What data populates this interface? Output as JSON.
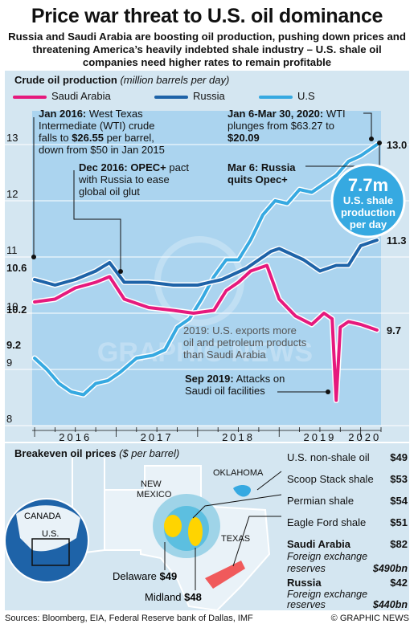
{
  "title": "Price war threat to U.S. oil dominance",
  "subtitle": "Russia and Saudi Arabia are boosting oil production, pushing down prices and threatening America’s heavily indebted shale industry – U.S. shale oil companies need higher rates to remain profitable",
  "colors": {
    "saudi": "#e6197d",
    "russia": "#1e63a8",
    "us": "#36a9e1",
    "panel": "#d4e6f1",
    "area": "#abd4ef"
  },
  "chart_data": {
    "type": "line",
    "title": "Crude oil production",
    "unit_note": "(million barrels per day)",
    "ylim": [
      8,
      13.6
    ],
    "yticks": [
      "8",
      "9",
      "10",
      "11",
      "12",
      "13"
    ],
    "xticks": [
      "2016",
      "2017",
      "2018",
      "2019",
      "2020"
    ],
    "series": [
      {
        "name": "Saudi Arabia",
        "color": "#e6197d",
        "x": [
          2016.0,
          2016.25,
          2016.5,
          2016.75,
          2016.92,
          2017.1,
          2017.4,
          2017.7,
          2017.95,
          2018.2,
          2018.35,
          2018.5,
          2018.65,
          2018.85,
          2019.0,
          2019.2,
          2019.4,
          2019.55,
          2019.65,
          2019.7,
          2019.75,
          2019.85,
          2020.0,
          2020.2
        ],
        "values": [
          10.2,
          10.25,
          10.45,
          10.55,
          10.65,
          10.25,
          10.1,
          10.05,
          10.0,
          10.05,
          10.4,
          10.55,
          10.75,
          10.85,
          10.25,
          9.95,
          9.8,
          10.0,
          9.9,
          8.45,
          9.75,
          9.85,
          9.8,
          9.7
        ]
      },
      {
        "name": "Russia",
        "color": "#1e63a8",
        "x": [
          2016.0,
          2016.25,
          2016.5,
          2016.75,
          2016.92,
          2017.1,
          2017.4,
          2017.7,
          2018.0,
          2018.3,
          2018.6,
          2018.9,
          2019.0,
          2019.3,
          2019.5,
          2019.7,
          2019.85,
          2020.0,
          2020.2
        ],
        "values": [
          10.6,
          10.5,
          10.6,
          10.75,
          10.9,
          10.55,
          10.55,
          10.5,
          10.5,
          10.6,
          10.8,
          11.1,
          11.15,
          10.95,
          10.75,
          10.85,
          10.85,
          11.2,
          11.3
        ]
      },
      {
        "name": "U.S",
        "color": "#36a9e1",
        "x": [
          2016.0,
          2016.15,
          2016.3,
          2016.45,
          2016.6,
          2016.75,
          2016.9,
          2017.05,
          2017.25,
          2017.45,
          2017.6,
          2017.75,
          2017.9,
          2018.05,
          2018.2,
          2018.35,
          2018.5,
          2018.65,
          2018.8,
          2018.95,
          2019.1,
          2019.25,
          2019.4,
          2019.55,
          2019.7,
          2019.85,
          2020.0,
          2020.2
        ],
        "values": [
          9.2,
          9.0,
          8.75,
          8.6,
          8.55,
          8.75,
          8.8,
          8.95,
          9.2,
          9.25,
          9.35,
          9.75,
          9.9,
          10.25,
          10.65,
          10.95,
          10.95,
          11.3,
          11.75,
          12.0,
          11.95,
          12.2,
          12.15,
          12.3,
          12.45,
          12.7,
          12.8,
          13.0
        ]
      }
    ],
    "line_legend": [
      "Saudi Arabia",
      "Russia",
      "U.S"
    ],
    "value_labels": [
      {
        "text": "10.6",
        "series": "Russia"
      },
      {
        "text": "10.2",
        "series": "Saudi Arabia"
      },
      {
        "text": "9.2",
        "series": "U.S"
      },
      {
        "text": "13.0",
        "series": "U.S"
      },
      {
        "text": "11.3",
        "series": "Russia"
      },
      {
        "text": "9.7",
        "series": "Saudi Arabia"
      }
    ],
    "annotations": {
      "jan2016": {
        "bold": "Jan 2016:",
        "line1": " West Texas",
        "line2": "Intermediate (WTI) crude",
        "line3a": "falls to ",
        "line3b": "$26.55",
        "line3c": " per barrel,",
        "line4": "down from $50 in Jan 2015"
      },
      "dec2016": {
        "bold": "Dec 2016: OPEC+",
        "line1": " pact",
        "line2": "with Russia to ease",
        "line3": "global oil glut"
      },
      "jan2020": {
        "bold": "Jan 6-Mar 30, 2020:",
        "line1": " WTI",
        "line2": "plunges from $63.27 to",
        "line3": "$20.09"
      },
      "mar6": {
        "line1": "Mar 6: Russia",
        "line2": "quits Opec+"
      },
      "bubble": {
        "big": "7.7m",
        "line1": "U.S. shale",
        "line2": "production",
        "line3": "per day"
      },
      "us2019a": {
        "line1a": "2019:",
        "line1b": " U.S. exports more",
        "line2": "oil and petroleum products",
        "line3": "than Saudi Arabia"
      },
      "sep2019": {
        "bold": "Sep 2019:",
        "line1": " Attacks on",
        "line2": "Saudi oil facilities"
      }
    }
  },
  "breakeven": {
    "title": "Breakeven oil prices",
    "unit": "($ per barrel)",
    "rows": [
      {
        "label": "U.S. non-shale oil",
        "value": "$49"
      },
      {
        "label": "Scoop Stack shale",
        "value": "$53"
      },
      {
        "label": "Permian shale",
        "value": "$54"
      },
      {
        "label": "Eagle Ford shale",
        "value": "$51"
      }
    ],
    "saudi": {
      "label": "Saudi Arabia",
      "value": "$82",
      "sub1": "Foreign exchange",
      "sub2": "reserves",
      "reserve": "$490bn"
    },
    "russia": {
      "label": "Russia",
      "value": "$42",
      "sub1": "Foreign exchange",
      "sub2": "reserves",
      "reserve": "$440bn"
    },
    "map_labels": {
      "new_mexico1": "NEW",
      "new_mexico2": "MEXICO",
      "oklahoma": "OKLAHOMA",
      "texas": "TEXAS",
      "canada": "CANADA",
      "us": "U.S.",
      "delaware": "Delaware",
      "delaware_val": "$49",
      "midland": "Midland",
      "midland_val": "$48"
    }
  },
  "watermark": "GRAPHIC NEWS",
  "footer": {
    "sources": "Sources: Bloomberg, EIA, Federal Reserve bank of Dallas, IMF",
    "credit": "© GRAPHIC NEWS"
  }
}
